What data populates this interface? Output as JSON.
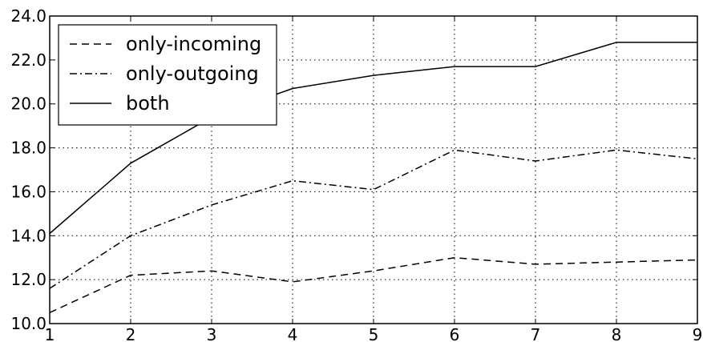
{
  "chart_data": {
    "type": "line",
    "x": [
      1,
      2,
      3,
      4,
      5,
      6,
      7,
      8,
      9
    ],
    "xlim": [
      1,
      9
    ],
    "ylim": [
      10.0,
      24.0
    ],
    "xticks": [
      "1",
      "2",
      "3",
      "4",
      "5",
      "6",
      "7",
      "8",
      "9"
    ],
    "yticks": [
      "10.0",
      "12.0",
      "14.0",
      "16.0",
      "18.0",
      "20.0",
      "22.0",
      "24.0"
    ],
    "grid": true,
    "legend_position": "top-left",
    "line_color": "#000000",
    "series": [
      {
        "name": "only-incoming",
        "style": "dashed",
        "values": [
          10.5,
          12.2,
          12.4,
          11.9,
          12.4,
          13.0,
          12.7,
          12.8,
          12.9
        ]
      },
      {
        "name": "only-outgoing",
        "style": "dash-dot",
        "values": [
          11.6,
          14.0,
          15.4,
          16.5,
          16.1,
          17.9,
          17.4,
          17.9,
          17.5
        ]
      },
      {
        "name": "both",
        "style": "solid",
        "values": [
          14.1,
          17.3,
          19.4,
          20.7,
          21.3,
          21.7,
          21.7,
          22.8,
          22.8
        ]
      }
    ]
  }
}
